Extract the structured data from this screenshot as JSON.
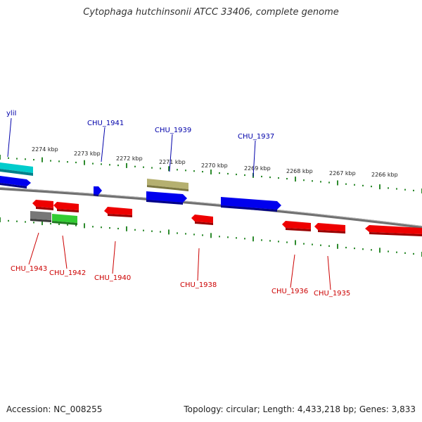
{
  "title": "Cytophaga hutchinsonii ATCC 33406, complete genome",
  "footer": {
    "accession": "Accession: NC_008255",
    "topology": "Topology: circular; Length: 4,433,218 bp; Genes: 3,833"
  },
  "colors": {
    "backbone": "#8a8a8a",
    "tick": "#2e8b2e",
    "forward_label": "#0000aa",
    "reverse_label": "#cc0000",
    "cds_forward": "#0000ee",
    "cds_reverse": "#ee0000",
    "rna": "#00cccc",
    "tan_feature": "#b5b070",
    "gray_feature": "#777777",
    "green_feature": "#33cc33"
  },
  "kbp_labels": [
    "2274 kbp",
    "2273 kbp",
    "2272 kbp",
    "2271 kbp",
    "2270 kbp",
    "2269 kbp",
    "2268 kbp",
    "2267 kbp",
    "2266 kbp"
  ],
  "forward_gene_labels": [
    "yliI",
    "CHU_1941",
    "CHU_1939",
    "CHU_1937"
  ],
  "reverse_gene_labels": [
    "CHU_1943",
    "CHU_1942",
    "CHU_1940",
    "CHU_1938",
    "CHU_1936",
    "CHU_1935"
  ]
}
